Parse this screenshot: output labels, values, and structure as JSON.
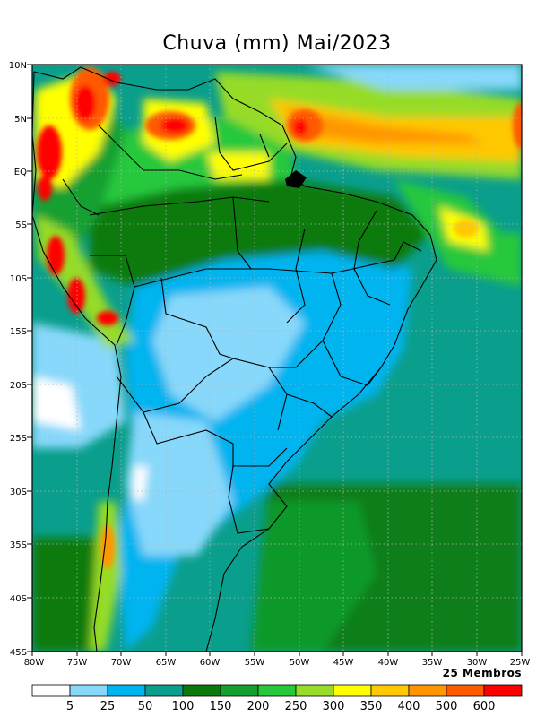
{
  "title": "Chuva (mm) Mai/2023",
  "members_label": "25 Membros",
  "lat_labels": [
    "10N",
    "5N",
    "EQ",
    "5S",
    "10S",
    "15S",
    "20S",
    "25S",
    "30S",
    "35S",
    "40S",
    "45S"
  ],
  "lon_labels": [
    "80W",
    "75W",
    "70W",
    "65W",
    "60W",
    "55W",
    "50W",
    "45W",
    "40W",
    "35W",
    "30W",
    "25W"
  ],
  "legend": {
    "colors": [
      "#ffffff",
      "#87d8fa",
      "#00b4f0",
      "#0a9e8c",
      "#0a7a0a",
      "#14a030",
      "#28c83c",
      "#96dc28",
      "#ffff00",
      "#ffc800",
      "#ff9600",
      "#ff5a00",
      "#ff0000"
    ],
    "labels": [
      "5",
      "25",
      "50",
      "100",
      "150",
      "200",
      "250",
      "300",
      "350",
      "400",
      "500",
      "600"
    ]
  }
}
